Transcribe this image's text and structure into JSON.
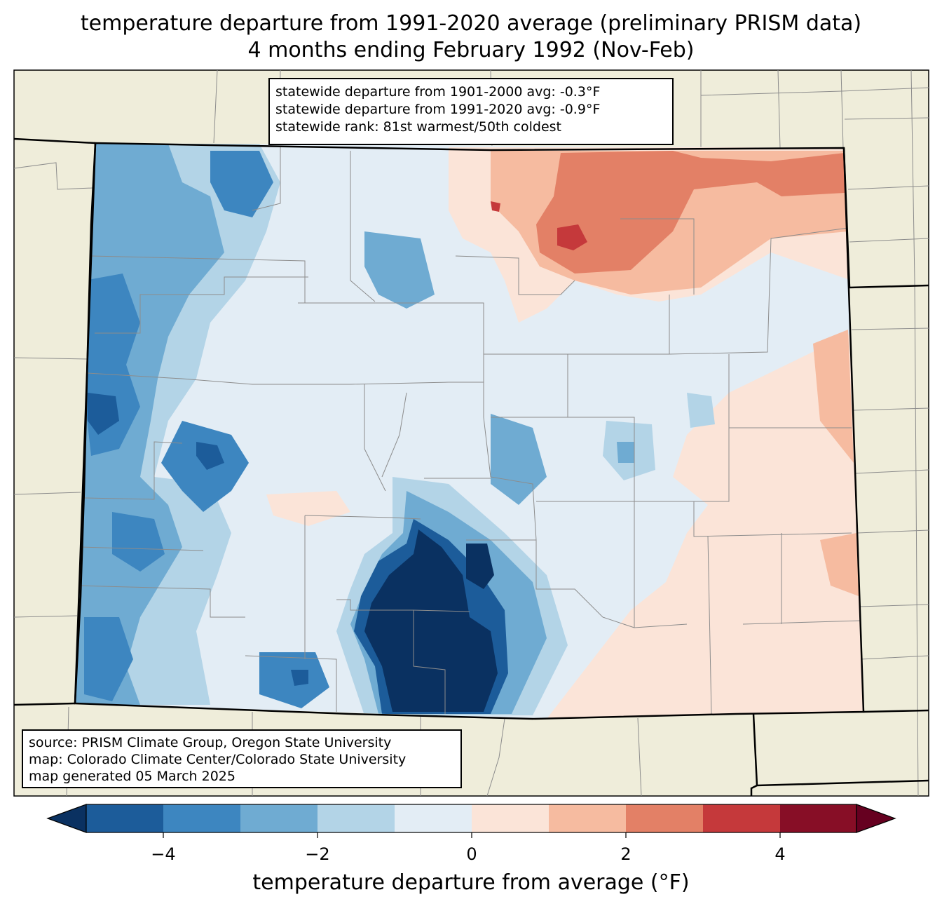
{
  "title": {
    "line1": "temperature departure from 1991-2020 average (preliminary PRISM data)",
    "line2": "4 months ending February 1992 (Nov-Feb)"
  },
  "stats": {
    "line1": "statewide departure from 1901-2000 avg: -0.3°F",
    "line2": "statewide departure from 1991-2020 avg: -0.9°F",
    "line3": "statewide rank: 81st warmest/50th coldest"
  },
  "source": {
    "line1": "source: PRISM Climate Group, Oregon State University",
    "line2": "map: Colorado Climate Center/Colorado State University",
    "line3": "map generated 05 March 2025"
  },
  "colorbar": {
    "label": "temperature departure from average (°F)",
    "ticks": [
      "−4",
      "−2",
      "0",
      "2",
      "4"
    ],
    "levels": [
      -5,
      -4,
      -3,
      -2,
      -1,
      0,
      1,
      2,
      3,
      4,
      5
    ],
    "colors": [
      "#0a3161",
      "#1c5c9a",
      "#3d86c0",
      "#6fabd2",
      "#b3d4e7",
      "#e3edf5",
      "#fbe4d8",
      "#f6bba0",
      "#e38066",
      "#c5393b",
      "#870e26",
      "#660020"
    ]
  },
  "map_colors": {
    "land": "#efedda",
    "county_lines": "#8c8c8c",
    "state_lines": "#000000"
  }
}
